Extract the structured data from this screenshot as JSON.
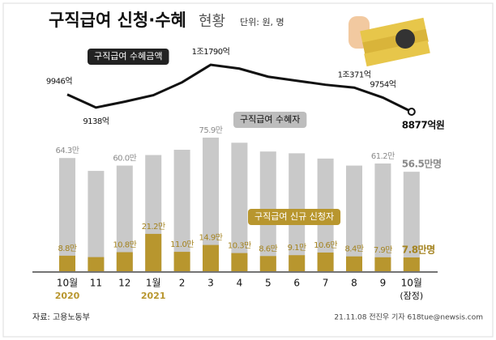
{
  "chart_data": {
    "type": "bar-line",
    "title": "구직급여 신청·수혜",
    "subtitle": "현황",
    "unit_note": "단위: 원, 명",
    "categories": [
      "10월",
      "11",
      "12",
      "1월",
      "2",
      "3",
      "4",
      "5",
      "6",
      "7",
      "8",
      "9",
      "10월"
    ],
    "category_sublabels": [
      "2020",
      null,
      null,
      "2021",
      null,
      null,
      null,
      null,
      null,
      null,
      null,
      null,
      "(잠정)"
    ],
    "series": [
      {
        "name": "구직급여 수혜자",
        "color": "#c9c9c9",
        "label_color": "#8a8a8a",
        "values": [
          64.3,
          57,
          60.0,
          66,
          69,
          75.9,
          73,
          68,
          67,
          64,
          60,
          61.2,
          56.5
        ],
        "value_labels": [
          "64.3만",
          null,
          "60.0만",
          null,
          null,
          "75.9만",
          null,
          null,
          null,
          null,
          null,
          "61.2만",
          "56.5만명"
        ]
      },
      {
        "name": "구직급여 신규 신청자",
        "color": "#b8962e",
        "label_color": "#a4831f",
        "values": [
          8.8,
          8.0,
          10.8,
          21.2,
          11.0,
          14.9,
          10.3,
          8.6,
          9.1,
          10.6,
          8.4,
          7.9,
          7.8
        ],
        "value_labels": [
          "8.8만",
          null,
          "10.8만",
          "21.2만",
          "11.0만",
          "14.9만",
          "10.3만",
          "8.6만",
          "9.1만",
          "10.6만",
          "8.4만",
          "7.9만",
          "7.8만명"
        ]
      },
      {
        "name": "구직급여 수혜금액",
        "color": "#111111",
        "kind": "line",
        "values": [
          9946,
          9138,
          9500,
          9900,
          10700,
          11790,
          11550,
          11050,
          10800,
          10550,
          10371,
          9754,
          8877
        ],
        "value_labels": [
          "9946억",
          "9138억",
          null,
          null,
          null,
          "1조1790억",
          null,
          null,
          null,
          null,
          "1조371억",
          "9754억",
          "8877억원"
        ]
      }
    ],
    "source": "자료: 고용노동부",
    "credit": "21.11.08 전진우 기자 618tue@newsis.com"
  }
}
